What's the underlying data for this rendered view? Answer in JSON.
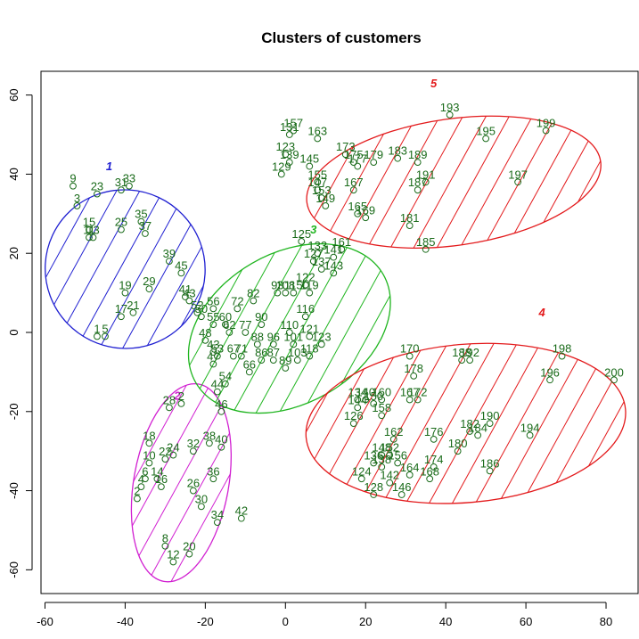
{
  "chart_data": {
    "type": "scatter",
    "title": "Clusters of customers",
    "xlabel": "",
    "ylabel": "",
    "xlim": [
      -61,
      88
    ],
    "ylim": [
      -66,
      66
    ],
    "xticks": [
      -60,
      -40,
      -20,
      0,
      20,
      40,
      60,
      80
    ],
    "yticks": [
      -60,
      -40,
      -20,
      0,
      20,
      40,
      60
    ],
    "grid": false,
    "point_color": "#1a6b1a",
    "points": [
      {
        "label": "1",
        "x": -47,
        "y": -1
      },
      {
        "label": "5",
        "x": -45,
        "y": -1
      },
      {
        "label": "9",
        "x": -53,
        "y": 37
      },
      {
        "label": "3",
        "x": -52,
        "y": 32
      },
      {
        "label": "23",
        "x": -47,
        "y": 35
      },
      {
        "label": "31",
        "x": -41,
        "y": 36
      },
      {
        "label": "33",
        "x": -39,
        "y": 37
      },
      {
        "label": "15",
        "x": -49,
        "y": 26
      },
      {
        "label": "11",
        "x": -49,
        "y": 24
      },
      {
        "label": "13",
        "x": -48,
        "y": 24
      },
      {
        "label": "25",
        "x": -41,
        "y": 26
      },
      {
        "label": "35",
        "x": -36,
        "y": 28
      },
      {
        "label": "37",
        "x": -35,
        "y": 25
      },
      {
        "label": "19",
        "x": -40,
        "y": 10
      },
      {
        "label": "29",
        "x": -34,
        "y": 11
      },
      {
        "label": "17",
        "x": -41,
        "y": 4
      },
      {
        "label": "21",
        "x": -38,
        "y": 5
      },
      {
        "label": "39",
        "x": -29,
        "y": 18
      },
      {
        "label": "45",
        "x": -26,
        "y": 15
      },
      {
        "label": "41",
        "x": -25,
        "y": 9
      },
      {
        "label": "43",
        "x": -24,
        "y": 8
      },
      {
        "label": "157",
        "x": 2,
        "y": 51
      },
      {
        "label": "131",
        "x": 1,
        "y": 50
      },
      {
        "label": "163",
        "x": 8,
        "y": 49
      },
      {
        "label": "123",
        "x": 0,
        "y": 45
      },
      {
        "label": "139",
        "x": 1,
        "y": 43
      },
      {
        "label": "145",
        "x": 6,
        "y": 42
      },
      {
        "label": "129",
        "x": -1,
        "y": 40
      },
      {
        "label": "173",
        "x": 15,
        "y": 45
      },
      {
        "label": "175",
        "x": 17,
        "y": 43
      },
      {
        "label": "177",
        "x": 18,
        "y": 42
      },
      {
        "label": "179",
        "x": 22,
        "y": 43
      },
      {
        "label": "183",
        "x": 28,
        "y": 44
      },
      {
        "label": "189",
        "x": 33,
        "y": 43
      },
      {
        "label": "155",
        "x": 8,
        "y": 38
      },
      {
        "label": "147",
        "x": 8,
        "y": 36
      },
      {
        "label": "167",
        "x": 17,
        "y": 36
      },
      {
        "label": "153",
        "x": 9,
        "y": 34
      },
      {
        "label": "149",
        "x": 10,
        "y": 32
      },
      {
        "label": "191",
        "x": 35,
        "y": 38
      },
      {
        "label": "187",
        "x": 33,
        "y": 36
      },
      {
        "label": "165",
        "x": 18,
        "y": 30
      },
      {
        "label": "169",
        "x": 20,
        "y": 29
      },
      {
        "label": "181",
        "x": 31,
        "y": 27
      },
      {
        "label": "185",
        "x": 35,
        "y": 21
      },
      {
        "label": "193",
        "x": 41,
        "y": 55
      },
      {
        "label": "195",
        "x": 50,
        "y": 49
      },
      {
        "label": "199",
        "x": 65,
        "y": 51
      },
      {
        "label": "197",
        "x": 58,
        "y": 38
      },
      {
        "label": "125",
        "x": 4,
        "y": 23
      },
      {
        "label": "133",
        "x": 8,
        "y": 20
      },
      {
        "label": "127",
        "x": 7,
        "y": 18
      },
      {
        "label": "161",
        "x": 14,
        "y": 21
      },
      {
        "label": "141",
        "x": 12,
        "y": 19
      },
      {
        "label": "143",
        "x": 12,
        "y": 15
      },
      {
        "label": "137",
        "x": 9,
        "y": 16
      },
      {
        "label": "122",
        "x": 5,
        "y": 12
      },
      {
        "label": "119",
        "x": 6,
        "y": 10
      },
      {
        "label": "82",
        "x": -8,
        "y": 8
      },
      {
        "label": "93",
        "x": -2,
        "y": 10
      },
      {
        "label": "108",
        "x": 0,
        "y": 10
      },
      {
        "label": "115",
        "x": 2,
        "y": 10
      },
      {
        "label": "56",
        "x": -18,
        "y": 6
      },
      {
        "label": "72",
        "x": -12,
        "y": 6
      },
      {
        "label": "50",
        "x": -21,
        "y": 4
      },
      {
        "label": "52",
        "x": -22,
        "y": 5
      },
      {
        "label": "116",
        "x": 5,
        "y": 4
      },
      {
        "label": "55",
        "x": -18,
        "y": 2
      },
      {
        "label": "60",
        "x": -15,
        "y": 2
      },
      {
        "label": "48",
        "x": -20,
        "y": -2
      },
      {
        "label": "62",
        "x": -14,
        "y": 0
      },
      {
        "label": "77",
        "x": -10,
        "y": 0
      },
      {
        "label": "90",
        "x": -6,
        "y": 2
      },
      {
        "label": "110",
        "x": 1,
        "y": 0
      },
      {
        "label": "121",
        "x": 6,
        "y": -1
      },
      {
        "label": "123",
        "x": 9,
        "y": -3
      },
      {
        "label": "88",
        "x": -7,
        "y": -3
      },
      {
        "label": "96",
        "x": -3,
        "y": -3
      },
      {
        "label": "101",
        "x": 2,
        "y": -3
      },
      {
        "label": "118",
        "x": 6,
        "y": -6
      },
      {
        "label": "43",
        "x": -18,
        "y": -5
      },
      {
        "label": "53",
        "x": -17,
        "y": -6
      },
      {
        "label": "67",
        "x": -13,
        "y": -6
      },
      {
        "label": "71",
        "x": -11,
        "y": -6
      },
      {
        "label": "86",
        "x": -6,
        "y": -7
      },
      {
        "label": "87",
        "x": -3,
        "y": -7
      },
      {
        "label": "103",
        "x": 3,
        "y": -7
      },
      {
        "label": "47",
        "x": -18,
        "y": -8
      },
      {
        "label": "66",
        "x": -9,
        "y": -10
      },
      {
        "label": "89",
        "x": 0,
        "y": -9
      },
      {
        "label": "54",
        "x": -15,
        "y": -13
      },
      {
        "label": "44",
        "x": -17,
        "y": -15
      },
      {
        "label": "46",
        "x": -16,
        "y": -20
      },
      {
        "label": "170",
        "x": 31,
        "y": -6
      },
      {
        "label": "178",
        "x": 32,
        "y": -11
      },
      {
        "label": "188",
        "x": 44,
        "y": -7
      },
      {
        "label": "192",
        "x": 46,
        "y": -7
      },
      {
        "label": "198",
        "x": 69,
        "y": -6
      },
      {
        "label": "196",
        "x": 66,
        "y": -12
      },
      {
        "label": "200",
        "x": 82,
        "y": -12
      },
      {
        "label": "134",
        "x": 18,
        "y": -17
      },
      {
        "label": "140",
        "x": 20,
        "y": -17
      },
      {
        "label": "150",
        "x": 22,
        "y": -18
      },
      {
        "label": "160",
        "x": 24,
        "y": -17
      },
      {
        "label": "167",
        "x": 31,
        "y": -17
      },
      {
        "label": "172",
        "x": 33,
        "y": -17
      },
      {
        "label": "144",
        "x": 18,
        "y": -19
      },
      {
        "label": "158",
        "x": 24,
        "y": -21
      },
      {
        "label": "126",
        "x": 17,
        "y": -23
      },
      {
        "label": "190",
        "x": 51,
        "y": -23
      },
      {
        "label": "182",
        "x": 46,
        "y": -25
      },
      {
        "label": "184",
        "x": 48,
        "y": -26
      },
      {
        "label": "194",
        "x": 61,
        "y": -26
      },
      {
        "label": "162",
        "x": 27,
        "y": -27
      },
      {
        "label": "176",
        "x": 37,
        "y": -27
      },
      {
        "label": "180",
        "x": 43,
        "y": -30
      },
      {
        "label": "148",
        "x": 24,
        "y": -31
      },
      {
        "label": "152",
        "x": 26,
        "y": -31
      },
      {
        "label": "136",
        "x": 22,
        "y": -33
      },
      {
        "label": "138",
        "x": 24,
        "y": -34
      },
      {
        "label": "156",
        "x": 28,
        "y": -33
      },
      {
        "label": "174",
        "x": 37,
        "y": -34
      },
      {
        "label": "164",
        "x": 31,
        "y": -36
      },
      {
        "label": "186",
        "x": 51,
        "y": -35
      },
      {
        "label": "124",
        "x": 19,
        "y": -37
      },
      {
        "label": "142",
        "x": 26,
        "y": -38
      },
      {
        "label": "168",
        "x": 36,
        "y": -37
      },
      {
        "label": "128",
        "x": 22,
        "y": -41
      },
      {
        "label": "146",
        "x": 29,
        "y": -41
      },
      {
        "label": "28",
        "x": -29,
        "y": -19
      },
      {
        "label": "2",
        "x": -26,
        "y": -18
      },
      {
        "label": "18",
        "x": -34,
        "y": -28
      },
      {
        "label": "22",
        "x": -30,
        "y": -32
      },
      {
        "label": "24",
        "x": -28,
        "y": -31
      },
      {
        "label": "32",
        "x": -23,
        "y": -30
      },
      {
        "label": "38",
        "x": -19,
        "y": -28
      },
      {
        "label": "40",
        "x": -16,
        "y": -29
      },
      {
        "label": "10",
        "x": -34,
        "y": -33
      },
      {
        "label": "6",
        "x": -35,
        "y": -37
      },
      {
        "label": "14",
        "x": -32,
        "y": -37
      },
      {
        "label": "16",
        "x": -31,
        "y": -39
      },
      {
        "label": "36",
        "x": -18,
        "y": -37
      },
      {
        "label": "26",
        "x": -23,
        "y": -40
      },
      {
        "label": "4",
        "x": -36,
        "y": -39
      },
      {
        "label": "2",
        "x": -37,
        "y": -42
      },
      {
        "label": "30",
        "x": -21,
        "y": -44
      },
      {
        "label": "34",
        "x": -17,
        "y": -48
      },
      {
        "label": "42",
        "x": -11,
        "y": -47
      },
      {
        "label": "8",
        "x": -30,
        "y": -54
      },
      {
        "label": "20",
        "x": -24,
        "y": -56
      },
      {
        "label": "12",
        "x": -28,
        "y": -58
      }
    ],
    "clusters": [
      {
        "name": "1",
        "color": "#1f1fd1",
        "center": [
          -40,
          16
        ],
        "rx": 20,
        "ry": 20,
        "angle_deg": -25,
        "label_at": [
          -44,
          41
        ]
      },
      {
        "name": "2",
        "color": "#d11fd1",
        "center": [
          -26,
          -38
        ],
        "rx": 25,
        "ry": 12,
        "angle_deg": -100,
        "label_at": [
          -27,
          -17
        ]
      },
      {
        "name": "3",
        "color": "#1fb51f",
        "center": [
          1,
          1
        ],
        "rx": 27,
        "ry": 19,
        "angle_deg": 30,
        "label_at": [
          7,
          25
        ]
      },
      {
        "name": "4",
        "color": "#e31a1c",
        "center": [
          45,
          -23
        ],
        "rx": 40,
        "ry": 20,
        "angle_deg": 5,
        "label_at": [
          64,
          4
        ]
      },
      {
        "name": "5",
        "color": "#e31a1c",
        "center": [
          42,
          38
        ],
        "rx": 37,
        "ry": 16,
        "angle_deg": 8,
        "label_at": [
          37,
          62
        ]
      }
    ]
  }
}
